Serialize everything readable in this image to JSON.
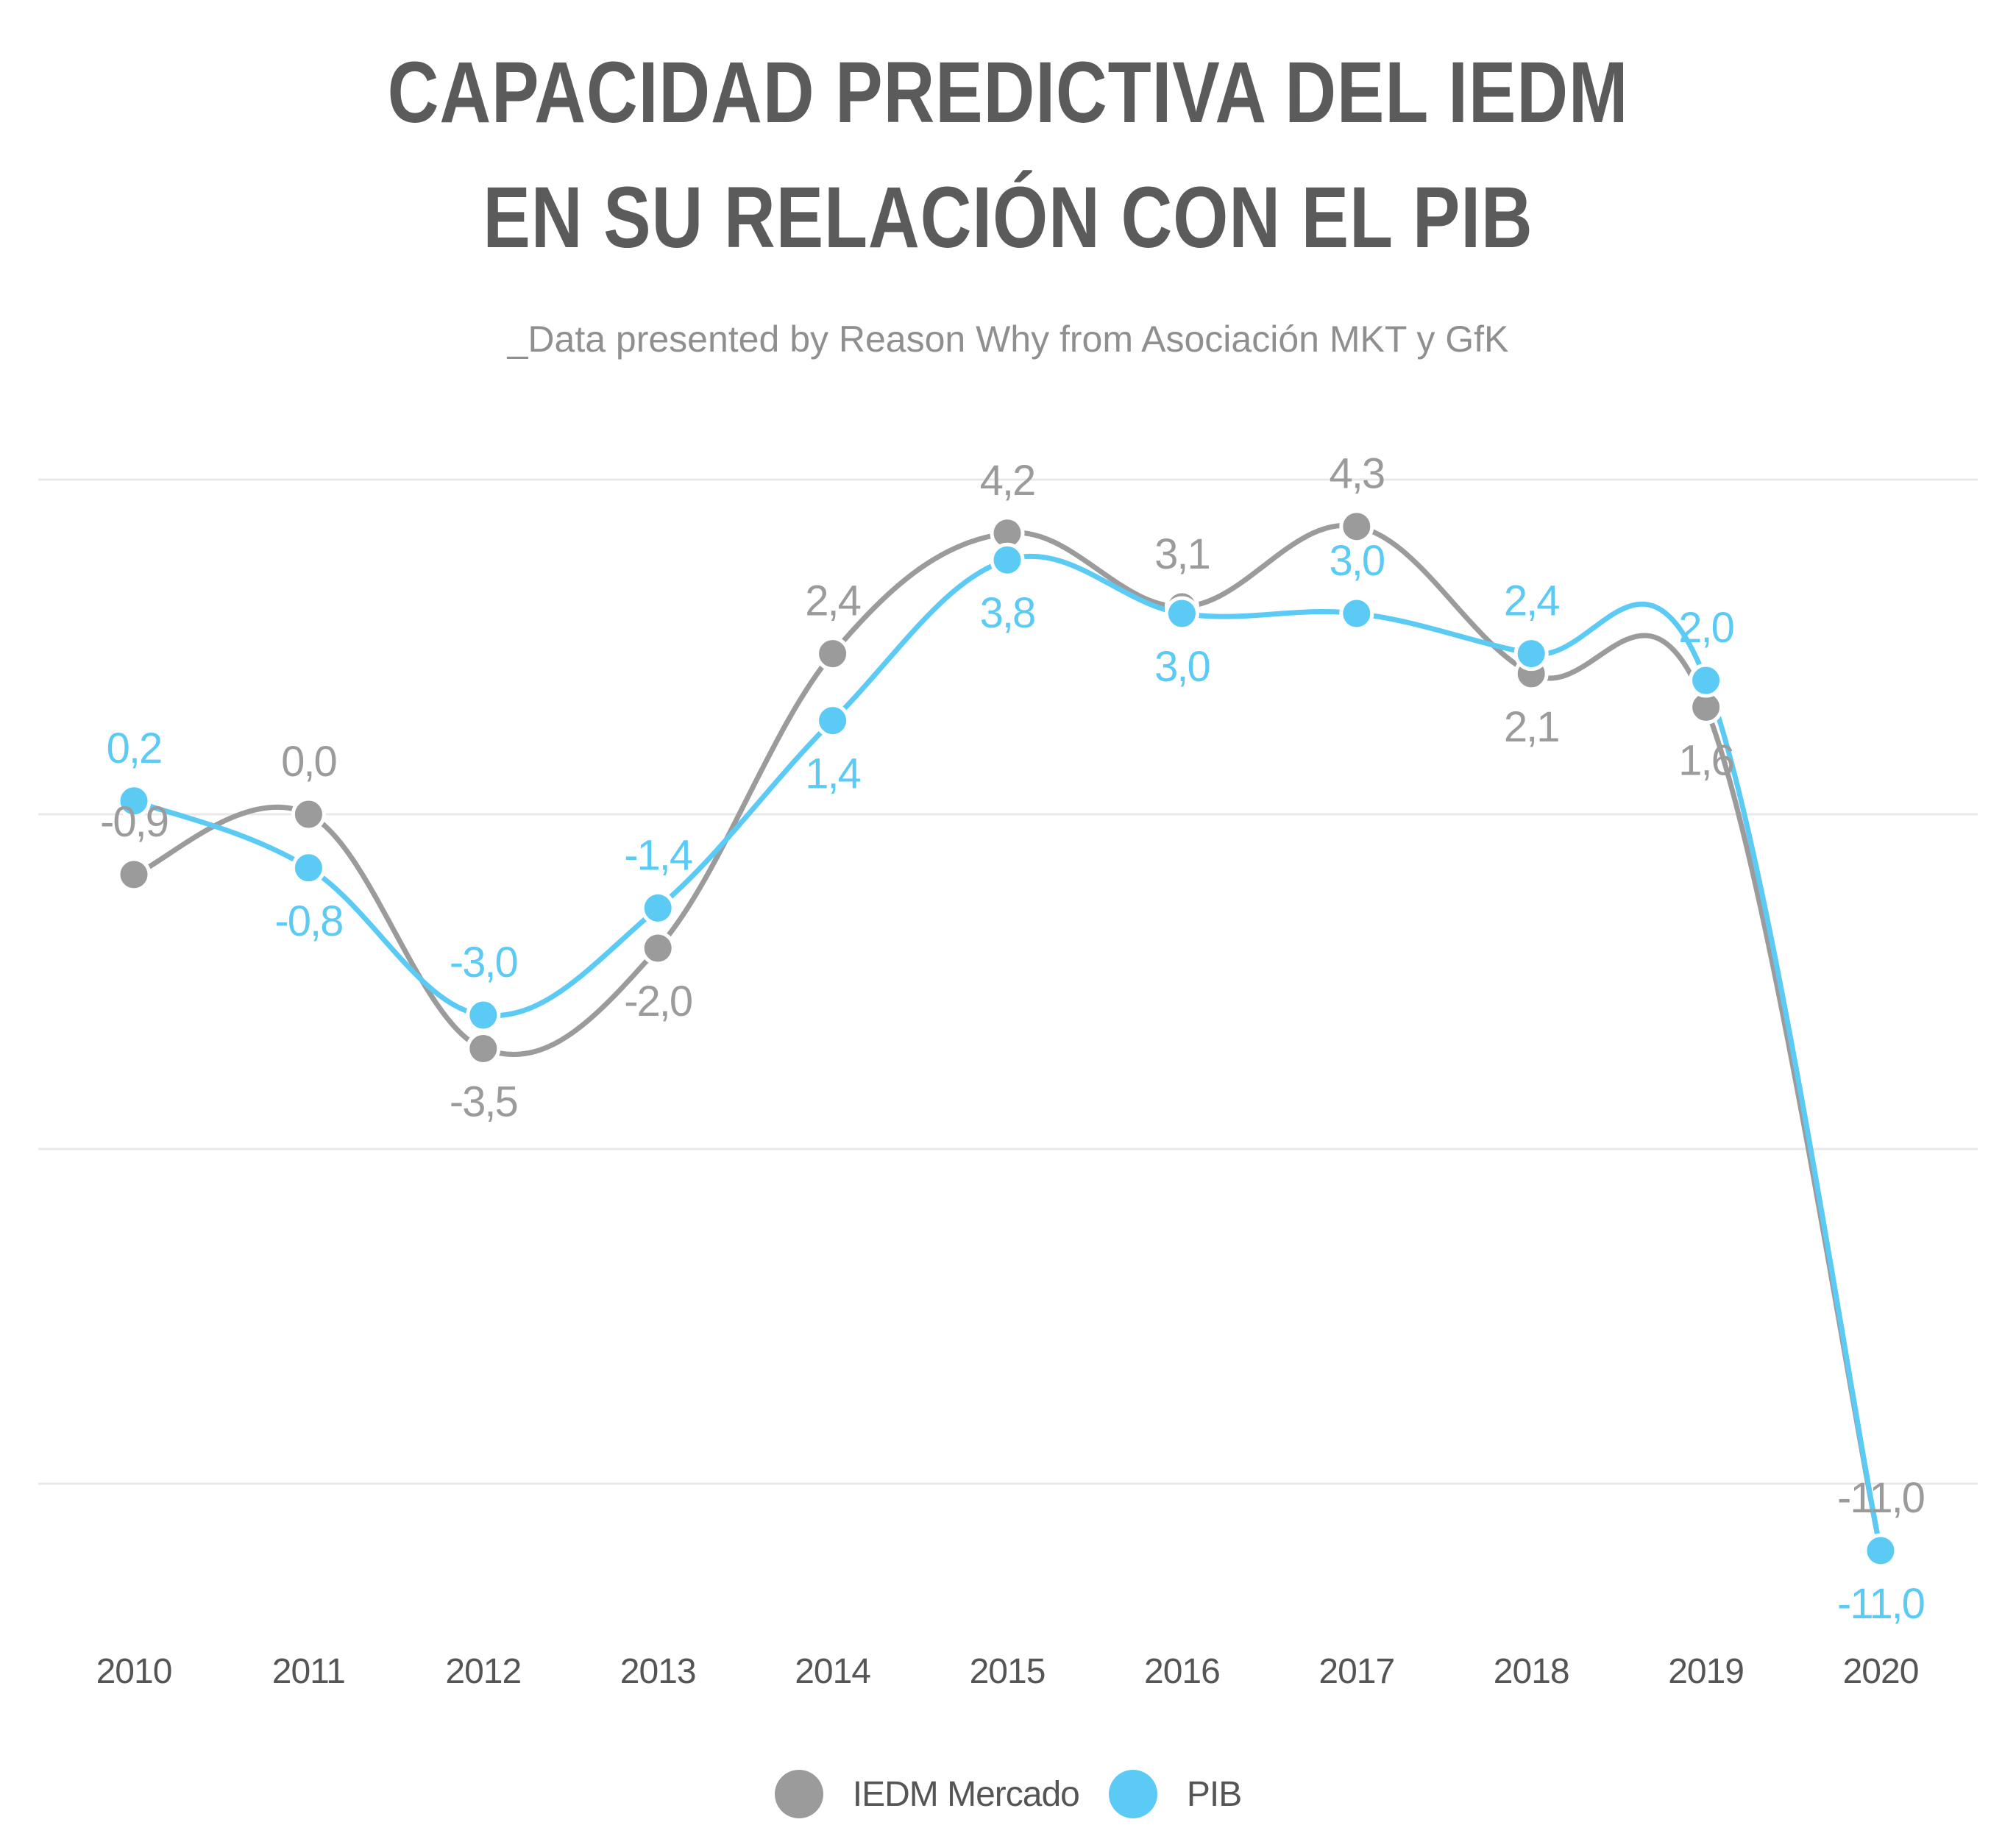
{
  "title_line1": "CAPACIDAD PREDICTIVA DEL IEDM",
  "title_line2": "EN SU RELACIÓN CON EL PIB",
  "subtitle": "_Data presented by Reason Why from Asociación MKT y GfK",
  "colors": {
    "iedm": "#9b9b9b",
    "pib": "#5bcbf5",
    "grid": "#e8e8e8",
    "tick": "#555555"
  },
  "chart_data": {
    "type": "line",
    "smooth": true,
    "categories": [
      "2010",
      "2011",
      "2012",
      "2013",
      "2014",
      "2015",
      "2016",
      "2017",
      "2018",
      "2019",
      "2020"
    ],
    "series": [
      {
        "name": "IEDM Mercado",
        "values": [
          -0.9,
          0.0,
          -3.5,
          -2.0,
          2.4,
          4.2,
          3.1,
          4.3,
          2.1,
          1.6,
          -11.0
        ],
        "labels": [
          "-0,9",
          "0,0",
          "-3,5",
          "-2,0",
          "2,4",
          "4,2",
          "3,1",
          "4,3",
          "2,1",
          "1,6",
          "-11,0"
        ]
      },
      {
        "name": "PIB",
        "values": [
          0.2,
          -0.8,
          -3.0,
          -1.4,
          1.4,
          3.8,
          3.0,
          3.0,
          2.4,
          2.0,
          -11.0
        ],
        "labels": [
          "0,2",
          "-0,8",
          "-3,0",
          "-1,4",
          "1,4",
          "3,8",
          "3,0",
          "3,0",
          "2,4",
          "2,0",
          "-11,0"
        ]
      }
    ],
    "ylim": [
      -15,
      5
    ],
    "gridlines": [
      5,
      0,
      -5,
      -10
    ],
    "grid": true,
    "y_tick_labels_shown": false,
    "legend_position": "bottom-center"
  }
}
